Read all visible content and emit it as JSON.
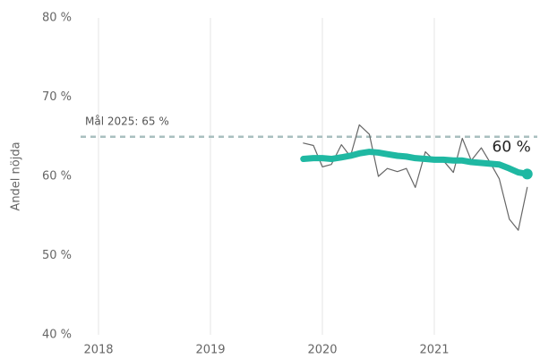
{
  "chart_data": {
    "type": "line",
    "y_label": "Andel nöjda",
    "x": [
      2019.83,
      2019.92,
      2020.0,
      2020.08,
      2020.17,
      2020.25,
      2020.33,
      2020.42,
      2020.5,
      2020.58,
      2020.67,
      2020.75,
      2020.83,
      2020.92,
      2021.0,
      2021.08,
      2021.17,
      2021.25,
      2021.33,
      2021.42,
      2021.5,
      2021.58,
      2021.67,
      2021.75,
      2021.83
    ],
    "series": [
      {
        "color": "#666666",
        "values": [
          64.2,
          63.9,
          61.2,
          61.5,
          64.0,
          62.5,
          66.5,
          65.3,
          60.0,
          61.0,
          60.6,
          61.0,
          58.6,
          63.1,
          62.0,
          62.0,
          60.5,
          64.8,
          62.0,
          63.6,
          61.7,
          59.7,
          54.6,
          53.2,
          58.6
        ]
      },
      {
        "color": "#1fb8a2",
        "values": [
          62.2,
          62.3,
          62.3,
          62.2,
          62.4,
          62.6,
          62.9,
          63.1,
          63.0,
          62.8,
          62.6,
          62.5,
          62.3,
          62.2,
          62.1,
          62.1,
          62.0,
          62.0,
          61.8,
          61.7,
          61.6,
          61.5,
          61.0,
          60.5,
          60.3
        ],
        "value_labels": [
          null,
          null,
          null,
          null,
          null,
          null,
          null,
          null,
          null,
          null,
          null,
          null,
          null,
          null,
          null,
          null,
          null,
          null,
          null,
          null,
          null,
          null,
          null,
          null,
          "60 %"
        ]
      }
    ],
    "annotations": [
      {
        "text": "Mål 2025: 65 %",
        "y": 65,
        "color": "#a9bfbf"
      }
    ],
    "xlim": [
      2017.84,
      2021.92
    ],
    "xticks": [
      2018,
      2019,
      2020,
      2021
    ],
    "ylim": [
      40,
      80
    ],
    "yticks": [
      {
        "value": 40,
        "label": "40 %"
      },
      {
        "value": 50,
        "label": "50 %"
      },
      {
        "value": 60,
        "label": "60 %"
      },
      {
        "value": 70,
        "label": "70 %"
      },
      {
        "value": 80,
        "label": "80 %"
      }
    ],
    "grid": "x"
  }
}
